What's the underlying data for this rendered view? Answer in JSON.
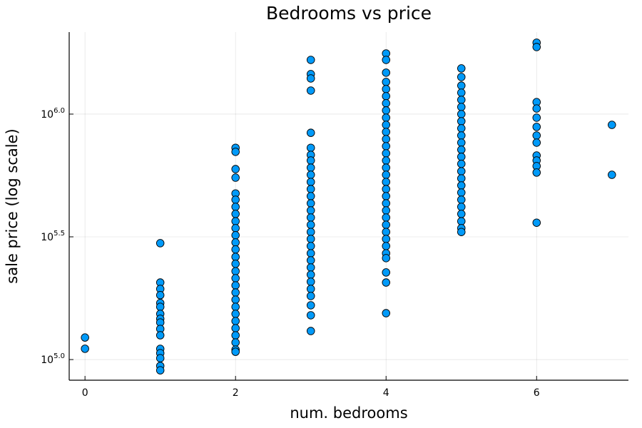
{
  "chart_data": {
    "type": "scatter",
    "title": "Bedrooms vs price",
    "x_label": "num. bedrooms",
    "y_label": "sale price (log scale)",
    "xlim": [
      -0.21,
      7.22
    ],
    "xticks": [
      0,
      2,
      4,
      6
    ],
    "ylim": [
      82400,
      2158000
    ],
    "yticks": [
      {
        "value": 100000,
        "label": "10^5.0"
      },
      {
        "value": 316228,
        "label": "10^5.5"
      },
      {
        "value": 1000000,
        "label": "10^6.0"
      }
    ],
    "log_y": true,
    "grid": true,
    "series": [
      {
        "name": "price",
        "color": "#009af9",
        "x": [
          0,
          0,
          1,
          1,
          1,
          1,
          1,
          1,
          1,
          1,
          1,
          1,
          1,
          1,
          1,
          1,
          1,
          1,
          2,
          2,
          2,
          2,
          2,
          2,
          2,
          2,
          2,
          2,
          2,
          2,
          2,
          2,
          2,
          2,
          2,
          2,
          2,
          2,
          2,
          2,
          2,
          2,
          2,
          2,
          2,
          2,
          3,
          3,
          3,
          3,
          3,
          3,
          3,
          3,
          3,
          3,
          3,
          3,
          3,
          3,
          3,
          3,
          3,
          3,
          3,
          3,
          3,
          3,
          3,
          3,
          3,
          3,
          3,
          3,
          3,
          3,
          4,
          4,
          4,
          4,
          4,
          4,
          4,
          4,
          4,
          4,
          4,
          4,
          4,
          4,
          4,
          4,
          4,
          4,
          4,
          4,
          4,
          4,
          4,
          4,
          4,
          4,
          4,
          4,
          4,
          4,
          4,
          4,
          5,
          5,
          5,
          5,
          5,
          5,
          5,
          5,
          5,
          5,
          5,
          5,
          5,
          5,
          5,
          5,
          5,
          5,
          5,
          5,
          5,
          5,
          5,
          5,
          6,
          6,
          6,
          6,
          6,
          6,
          6,
          6,
          6,
          6,
          6,
          6,
          6,
          7,
          7
        ],
        "values": [
          123000,
          110700,
          298000,
          206000,
          194000,
          183000,
          170000,
          164000,
          153500,
          146600,
          141600,
          133300,
          125600,
          110600,
          106200,
          101300,
          94200,
          90400,
          729000,
          702000,
          597000,
          551000,
          475000,
          448000,
          419000,
          392000,
          366000,
          343000,
          321000,
          300000,
          281000,
          262000,
          245500,
          229000,
          214500,
          200500,
          187600,
          175400,
          164000,
          153500,
          143500,
          134200,
          125500,
          117400,
          109800,
          107600,
          1663000,
          1455000,
          1397000,
          1247000,
          839000,
          729000,
          682000,
          647000,
          605000,
          566000,
          529000,
          495000,
          463000,
          433000,
          405000,
          379000,
          354000,
          331000,
          310000,
          290000,
          271000,
          253600,
          237200,
          221800,
          207500,
          194000,
          181500,
          166400,
          151500,
          130700,
          1766000,
          1663000,
          1475000,
          1352000,
          1265000,
          1183000,
          1107000,
          1035000,
          967000,
          904000,
          846000,
          791000,
          740000,
          692000,
          647000,
          605000,
          566000,
          529000,
          495000,
          463000,
          433000,
          405000,
          379000,
          354000,
          331000,
          310000,
          290000,
          271000,
          259000,
          226500,
          206000,
          154500,
          1535000,
          1416000,
          1306000,
          1222000,
          1143000,
          1069000,
          1000000,
          935000,
          875000,
          818000,
          765000,
          716000,
          670000,
          627000,
          585000,
          547000,
          512000,
          479000,
          448000,
          419000,
          392000,
          366000,
          343000,
          331000,
          1954000,
          1876000,
          1119000,
          1054000,
          967000,
          887000,
          818000,
          765000,
          678000,
          647000,
          614000,
          578000,
          361000,
          904000,
          566000
        ]
      }
    ]
  }
}
